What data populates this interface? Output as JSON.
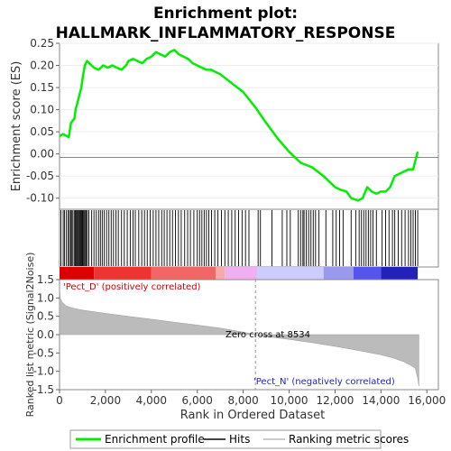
{
  "chart_data": [
    {
      "type": "line",
      "panel": "enrichment-profile",
      "title_lines": [
        "Enrichment plot:",
        "HALLMARK_INFLAMMATORY_RESPONSE"
      ],
      "ylabel": "Enrichment score (ES)",
      "ylim": [
        -0.125,
        0.25
      ],
      "yticks": [
        -0.1,
        -0.05,
        0.0,
        0.05,
        0.1,
        0.15,
        0.2,
        0.25
      ],
      "ytick_labels": [
        "-0.10",
        "-0.05",
        "0.00",
        "0.05",
        "0.10",
        "0.15",
        "0.20",
        "0.25"
      ],
      "xlim": [
        0,
        16500
      ],
      "series": [
        {
          "name": "Enrichment profile",
          "color": "#00ee00",
          "x": [
            0,
            150,
            400,
            500,
            650,
            700,
            800,
            900,
            950,
            1000,
            1100,
            1200,
            1300,
            1500,
            1700,
            1900,
            2100,
            2300,
            2500,
            2700,
            2900,
            3000,
            3200,
            3400,
            3600,
            3800,
            4000,
            4200,
            4400,
            4600,
            4800,
            5000,
            5200,
            5400,
            5600,
            5800,
            6000,
            6200,
            6400,
            6600,
            6800,
            7000,
            7500,
            8000,
            8534,
            9000,
            9500,
            10000,
            10500,
            11000,
            11500,
            12000,
            12200,
            12500,
            12700,
            13000,
            13200,
            13400,
            13600,
            13800,
            14000,
            14200,
            14400,
            14600,
            14800,
            15000,
            15200,
            15400,
            15600
          ],
          "values": [
            0.04,
            0.045,
            0.038,
            0.07,
            0.08,
            0.1,
            0.12,
            0.14,
            0.15,
            0.17,
            0.2,
            0.21,
            0.205,
            0.195,
            0.19,
            0.2,
            0.195,
            0.2,
            0.195,
            0.19,
            0.2,
            0.21,
            0.215,
            0.21,
            0.205,
            0.215,
            0.22,
            0.23,
            0.225,
            0.22,
            0.23,
            0.235,
            0.225,
            0.22,
            0.215,
            0.205,
            0.2,
            0.195,
            0.19,
            0.19,
            0.185,
            0.18,
            0.16,
            0.14,
            0.105,
            0.07,
            0.035,
            0.005,
            -0.02,
            -0.03,
            -0.05,
            -0.075,
            -0.08,
            -0.085,
            -0.1,
            -0.105,
            -0.1,
            -0.075,
            -0.085,
            -0.09,
            -0.085,
            -0.085,
            -0.075,
            -0.05,
            -0.045,
            -0.04,
            -0.035,
            -0.035,
            0.005
          ]
        }
      ]
    },
    {
      "type": "hits",
      "panel": "gene-hit-ticks",
      "legend_name": "Hits",
      "color": "#000000",
      "x": [
        60,
        160,
        220,
        300,
        380,
        430,
        490,
        520,
        580,
        640,
        690,
        720,
        760,
        800,
        850,
        880,
        920,
        960,
        1000,
        1030,
        1070,
        1110,
        1160,
        1210,
        1280,
        1400,
        1500,
        1600,
        1700,
        1780,
        1860,
        1950,
        2050,
        2150,
        2250,
        2350,
        2460,
        2560,
        2700,
        2820,
        2950,
        3080,
        3200,
        3300,
        3450,
        3580,
        3700,
        3820,
        3950,
        4080,
        4200,
        4320,
        4450,
        4560,
        4680,
        4800,
        4920,
        5050,
        5180,
        5300,
        5450,
        5580,
        5700,
        5850,
        6000,
        6100,
        6200,
        6300,
        6400,
        6500,
        6620,
        6760,
        6900,
        7050,
        7200,
        7350,
        7500,
        7650,
        7800,
        7950,
        8100,
        8250,
        8650,
        8750,
        9250,
        9700,
        9900,
        10050,
        10400,
        10500,
        10600,
        10650,
        10750,
        10850,
        10950,
        11050,
        11150,
        11300,
        11600,
        11900,
        12050,
        12200,
        12350,
        12700,
        12900,
        13050,
        13150,
        13250,
        13350,
        13450,
        13550,
        13650,
        13800,
        14050,
        14200,
        14350,
        14500,
        14600,
        14750,
        14900,
        15050,
        15200,
        15300,
        15400,
        15500,
        15600
      ]
    },
    {
      "type": "heatmap",
      "panel": "rank-color-bar",
      "colors": [
        "#dd0000",
        "#ee3333",
        "#f26666",
        "#f7aaaa",
        "#eeb0ee",
        "#ccccff",
        "#9999ee",
        "#5555ee",
        "#2222bb"
      ],
      "stops": [
        0,
        1500,
        4000,
        6800,
        7200,
        8600,
        11500,
        12800,
        14000,
        15600
      ]
    },
    {
      "type": "area",
      "panel": "ranked-list-metric",
      "legend_name": "Ranking metric scores",
      "color": "#bbbbbb",
      "ylabel": "Ranked list metric (Signal2Noise)",
      "xlabel": "Rank in Ordered Dataset",
      "ylim": [
        -1.5,
        1.5
      ],
      "yticks": [
        -1.5,
        -1.0,
        -0.5,
        0.0,
        0.5,
        1.0,
        1.5
      ],
      "ytick_labels": [
        "-1.5",
        "-1.0",
        "-0.5",
        "0.0",
        "0.5",
        "1.0",
        "1.5"
      ],
      "xlim": [
        0,
        16500
      ],
      "xticks": [
        0,
        2000,
        4000,
        6000,
        8000,
        10000,
        12000,
        14000,
        16000
      ],
      "xtick_labels": [
        "0",
        "2,000",
        "4,000",
        "6,000",
        "8,000",
        "10,000",
        "12,000",
        "14,000",
        "16,000"
      ],
      "x": [
        0,
        30,
        100,
        300,
        600,
        1000,
        2000,
        3000,
        4000,
        5000,
        6000,
        7000,
        8000,
        8534,
        9000,
        10000,
        11000,
        12000,
        13000,
        14000,
        14500,
        15000,
        15300,
        15500,
        15600,
        15650
      ],
      "values": [
        1.3,
        1.0,
        0.9,
        0.78,
        0.72,
        0.67,
        0.58,
        0.5,
        0.42,
        0.34,
        0.26,
        0.18,
        0.07,
        0.0,
        -0.05,
        -0.13,
        -0.22,
        -0.32,
        -0.43,
        -0.55,
        -0.63,
        -0.74,
        -0.84,
        -0.92,
        -1.2,
        -1.4
      ],
      "annotations": {
        "positive": "'Pect_D' (positively correlated)",
        "negative": "'Pect_N' (negatively correlated)",
        "zero_cross_label": "Zero cross at 8534",
        "zero_cross_x": 8534
      }
    }
  ],
  "legend": {
    "items": [
      {
        "label": "Enrichment profile",
        "color": "#00ee00"
      },
      {
        "label": "Hits",
        "color": "#444444"
      },
      {
        "label": "Ranking metric scores",
        "color": "#cccccc"
      }
    ]
  }
}
